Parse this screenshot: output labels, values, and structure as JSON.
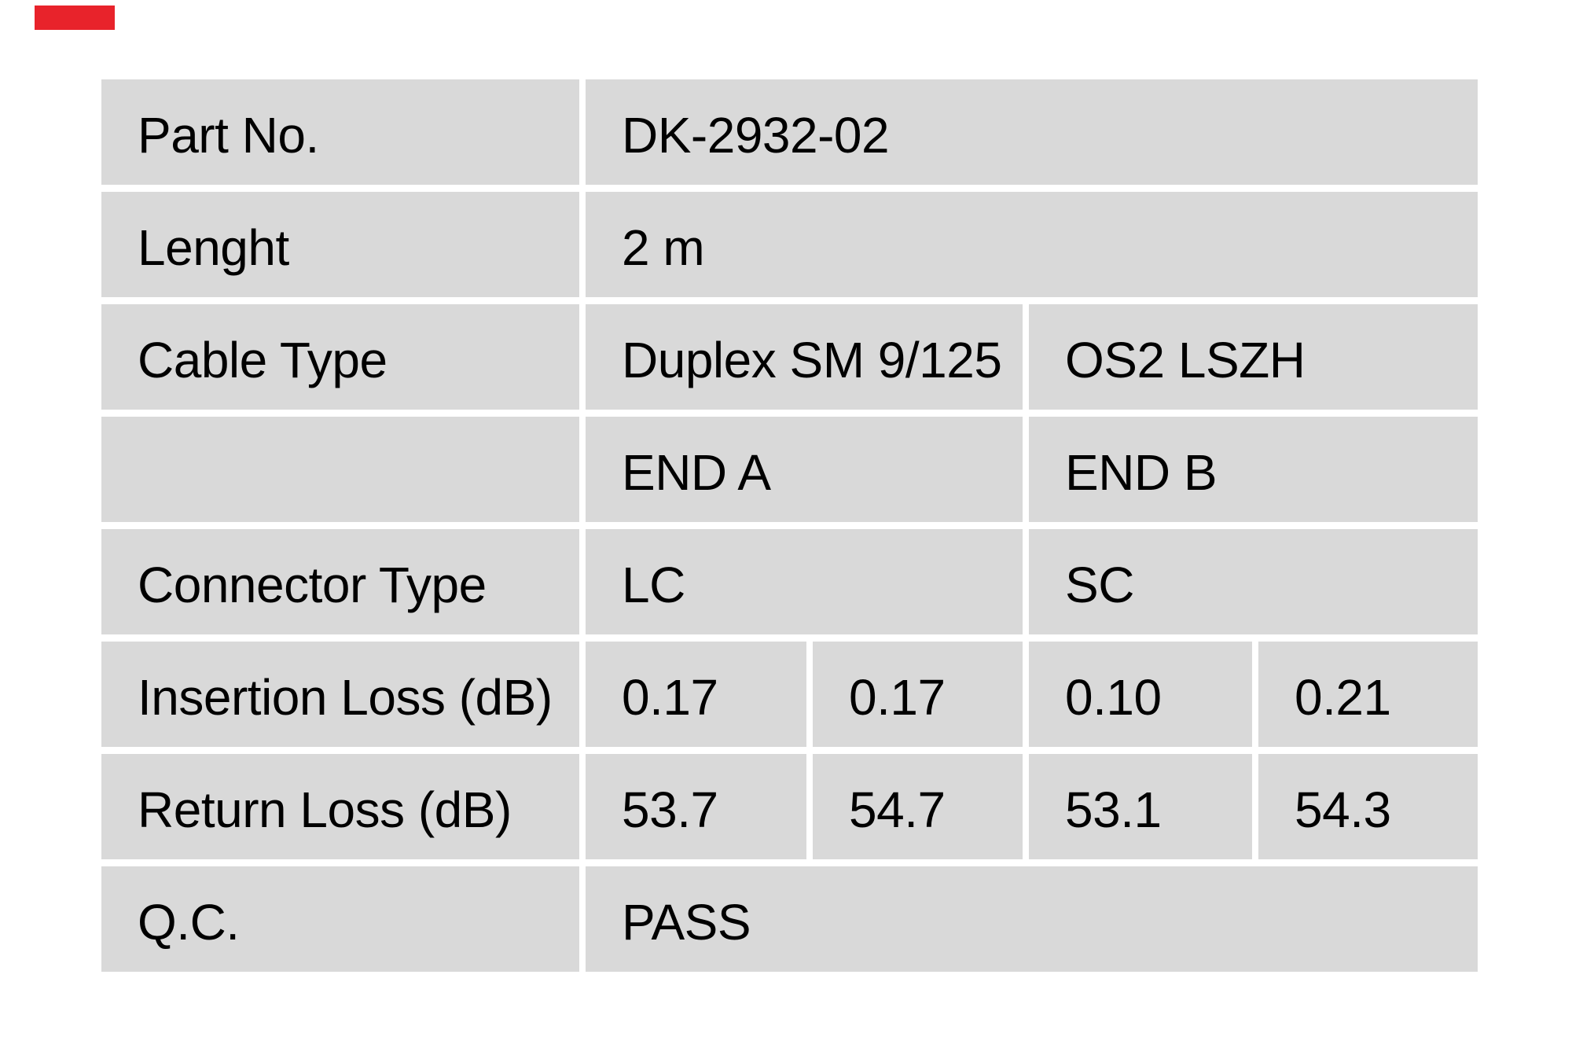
{
  "page": {
    "background": "#ffffff"
  },
  "brand_bar": {
    "color": "#e8232b"
  },
  "table": {
    "cell_background": "#d9d9d9",
    "text_color": "#000000",
    "rows": [
      {
        "label": "Part No.",
        "values": [
          {
            "text": "DK-2932-02"
          }
        ]
      },
      {
        "label": "Lenght",
        "values": [
          {
            "text": "2 m"
          }
        ]
      },
      {
        "label": "Cable Type",
        "values": [
          {
            "text": "Duplex SM 9/125"
          },
          {
            "text": "OS2 LSZH"
          }
        ]
      },
      {
        "label": "",
        "values": [
          {
            "text": "END A"
          },
          {
            "text": "END B"
          }
        ]
      },
      {
        "label": "Connector Type",
        "values": [
          {
            "text": "LC"
          },
          {
            "text": "SC"
          }
        ]
      },
      {
        "label": "Insertion Loss (dB)",
        "values": [
          {
            "text": "0.17"
          },
          {
            "text": "0.17"
          },
          {
            "text": "0.10"
          },
          {
            "text": "0.21"
          }
        ]
      },
      {
        "label": "Return Loss (dB)",
        "values": [
          {
            "text": "53.7"
          },
          {
            "text": "54.7"
          },
          {
            "text": "53.1"
          },
          {
            "text": "54.3"
          }
        ]
      },
      {
        "label": "Q.C.",
        "values": [
          {
            "text": "PASS"
          }
        ]
      }
    ]
  }
}
